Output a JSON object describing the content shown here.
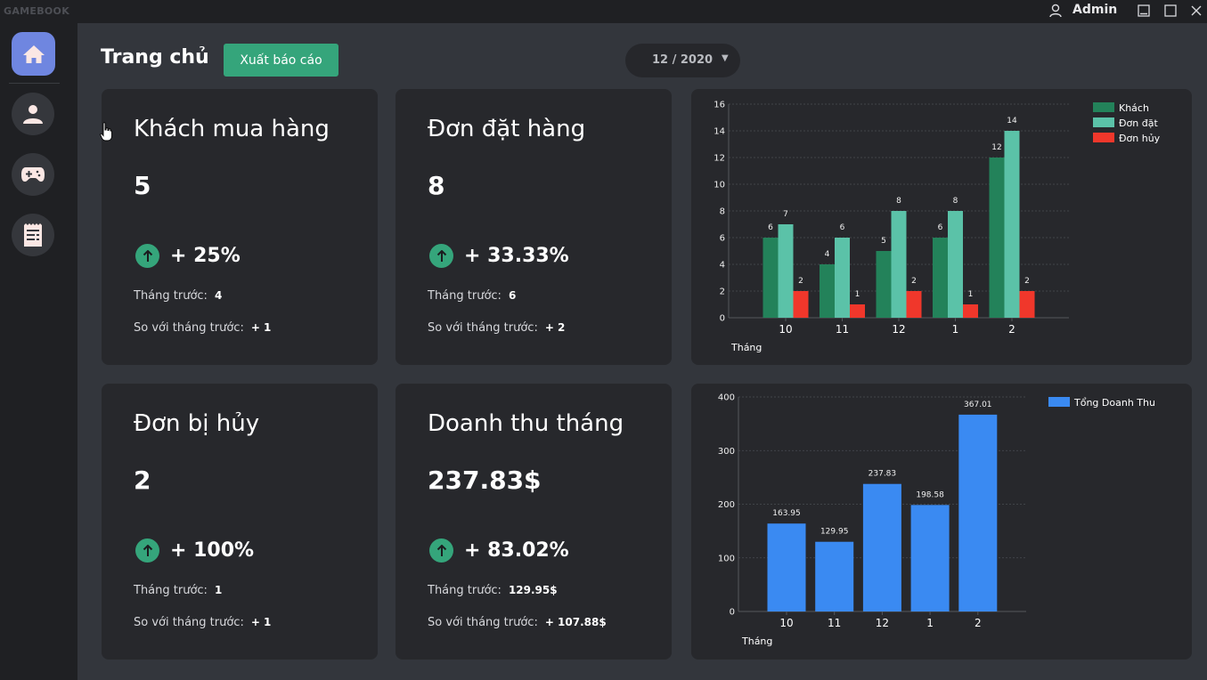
{
  "app": {
    "name": "GAMEBOOK",
    "user": "Admin"
  },
  "window_controls": [
    "minimize-icon",
    "maximize-icon",
    "close-icon"
  ],
  "sidebar": {
    "items": [
      {
        "name": "home",
        "icon": "home-icon",
        "active": true
      },
      {
        "name": "users",
        "icon": "user-icon",
        "active": false
      },
      {
        "name": "games",
        "icon": "gamepad-icon",
        "active": false
      },
      {
        "name": "reports",
        "icon": "receipt-icon",
        "active": false
      }
    ]
  },
  "header": {
    "title": "Trang chủ",
    "export_label": "Xuất báo cáo",
    "month_value": "12 / 2020"
  },
  "colors": {
    "accent": "#35a57b",
    "home_active": "#6f86e0",
    "khach": "#23825a",
    "don_dat": "#5bc2a8",
    "don_huy": "#f0372b",
    "doanh_thu": "#3a8af2"
  },
  "stats": [
    {
      "title": "Khách mua hàng",
      "value": "5",
      "trend": "+ 25%",
      "prev_label": "Tháng trước:",
      "prev_value": "4",
      "diff_label": "So với tháng trước:",
      "diff_value": "+ 1"
    },
    {
      "title": "Đơn đặt hàng",
      "value": "8",
      "trend": "+ 33.33%",
      "prev_label": "Tháng trước:",
      "prev_value": "6",
      "diff_label": "So với tháng trước:",
      "diff_value": "+ 2"
    },
    {
      "title": "Đơn bị hủy",
      "value": "2",
      "trend": "+ 100%",
      "prev_label": "Tháng trước:",
      "prev_value": "1",
      "diff_label": "So với tháng trước:",
      "diff_value": "+ 1"
    },
    {
      "title": "Doanh thu tháng",
      "value": "237.83$",
      "trend": "+ 83.02%",
      "prev_label": "Tháng trước:",
      "prev_value": "129.95$",
      "diff_label": "So với tháng trước:",
      "diff_value": "+ 107.88$"
    }
  ],
  "chart_data": [
    {
      "type": "bar",
      "title": "",
      "xlabel": "Tháng",
      "ylabel": "",
      "categories": [
        "10",
        "11",
        "12",
        "1",
        "2"
      ],
      "ylim": [
        0,
        16
      ],
      "yticks": [
        0,
        2,
        4,
        6,
        8,
        10,
        12,
        14,
        16
      ],
      "grid": true,
      "legend": "top-right",
      "series": [
        {
          "name": "Khách",
          "values": [
            6,
            4,
            5,
            6,
            12
          ]
        },
        {
          "name": "Đơn đặt",
          "values": [
            7,
            6,
            8,
            8,
            14
          ]
        },
        {
          "name": "Đơn hủy",
          "values": [
            2,
            1,
            2,
            1,
            2
          ]
        }
      ]
    },
    {
      "type": "bar",
      "title": "",
      "xlabel": "Tháng",
      "ylabel": "",
      "categories": [
        "10",
        "11",
        "12",
        "1",
        "2"
      ],
      "ylim": [
        0,
        400
      ],
      "yticks": [
        0,
        100,
        200,
        300,
        400
      ],
      "grid": true,
      "legend": "top-right",
      "series": [
        {
          "name": "Tổng Doanh Thu",
          "values": [
            163.95,
            129.95,
            237.83,
            198.58,
            367.01
          ]
        }
      ]
    }
  ]
}
